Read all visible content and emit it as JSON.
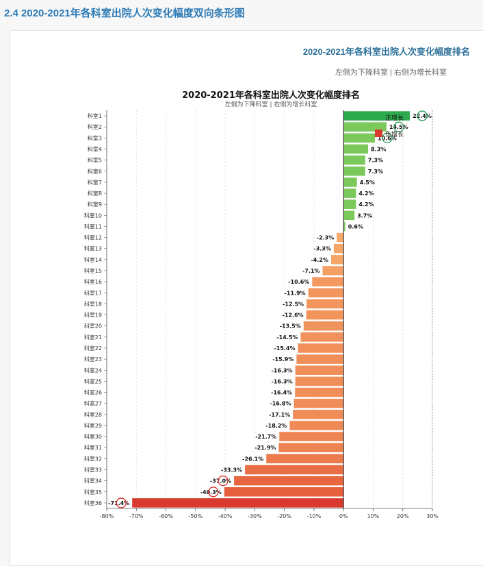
{
  "section": {
    "title": "2.4 2020-2021年各科室出院人次变化幅度双向条形图"
  },
  "card": {
    "title": "2020-2021年各科室出院人次变化幅度排名",
    "subtitle": "左侧为下降科室 | 右侧为增长科室"
  },
  "colors": {
    "positive_top": "#2eaa4f",
    "positive": "#7ac95a",
    "negative_light": "#f7ad6c",
    "negative_dark": "#e65f3c",
    "negative_min": "#d93a2f",
    "circle_positive": "#2a9d5a",
    "circle_negative": "#d73027"
  },
  "chart_data": {
    "type": "bar",
    "orientation": "horizontal",
    "title": "2020-2021年各科室出院人次变化幅度排名",
    "subtitle": "左侧为下降科室 | 右侧为增长科室",
    "categories": [
      "科室1",
      "科室2",
      "科室3",
      "科室4",
      "科室5",
      "科室6",
      "科室7",
      "科室8",
      "科室9",
      "科室10",
      "科室11",
      "科室12",
      "科室13",
      "科室14",
      "科室15",
      "科室16",
      "科室17",
      "科室18",
      "科室19",
      "科室20",
      "科室21",
      "科室22",
      "科室23",
      "科室24",
      "科室25",
      "科室26",
      "科室27",
      "科室28",
      "科室29",
      "科室30",
      "科室31",
      "科室32",
      "科室33",
      "科室34",
      "科室35",
      "科室36"
    ],
    "values": [
      22.4,
      14.5,
      10.6,
      8.3,
      7.3,
      7.3,
      4.5,
      4.2,
      4.2,
      3.7,
      0.6,
      -2.3,
      -3.3,
      -4.2,
      -7.1,
      -10.6,
      -11.9,
      -12.5,
      -12.6,
      -13.5,
      -14.5,
      -15.4,
      -15.9,
      -16.3,
      -16.3,
      -16.4,
      -16.8,
      -17.1,
      -18.2,
      -21.7,
      -21.9,
      -26.1,
      -33.3,
      -37.0,
      -40.3,
      -71.4
    ],
    "value_labels": [
      "22.4%",
      "14.5%",
      "10.6%",
      "8.3%",
      "7.3%",
      "7.3%",
      "4.5%",
      "4.2%",
      "4.2%",
      "3.7%",
      "0.6%",
      "-2.3%",
      "-3.3%",
      "-4.2%",
      "-7.1%",
      "-10.6%",
      "-11.9%",
      "-12.5%",
      "-12.6%",
      "-13.5%",
      "-14.5%",
      "-15.4%",
      "-15.9%",
      "-16.3%",
      "-16.3%",
      "-16.4%",
      "-16.8%",
      "-17.1%",
      "-18.2%",
      "-21.7%",
      "-21.9%",
      "-26.1%",
      "-33.3%",
      "-37.0%",
      "-40.3%",
      "-71.4%"
    ],
    "xlim": [
      -80,
      30
    ],
    "xticks": [
      -80,
      -70,
      -60,
      -50,
      -40,
      -30,
      -20,
      -10,
      0,
      10,
      20,
      30
    ],
    "xtick_labels": [
      "-80%",
      "-70%",
      "-60%",
      "-50%",
      "-40%",
      "-30%",
      "-20%",
      "-10%",
      "0%",
      "10%",
      "20%",
      "30%"
    ],
    "grid": "vertical-dashed",
    "legend": {
      "position": "top-right",
      "entries": [
        {
          "name": "正增长",
          "color": "#2eaa4f"
        },
        {
          "name": "负增长",
          "color": "#d93a2f"
        }
      ]
    },
    "highlighted": [
      {
        "category": "科室1",
        "type": "positive"
      },
      {
        "category": "科室2",
        "type": "positive"
      },
      {
        "category": "科室3",
        "type": "positive"
      },
      {
        "category": "科室34",
        "type": "negative"
      },
      {
        "category": "科室35",
        "type": "negative"
      },
      {
        "category": "科室36",
        "type": "negative"
      }
    ]
  }
}
